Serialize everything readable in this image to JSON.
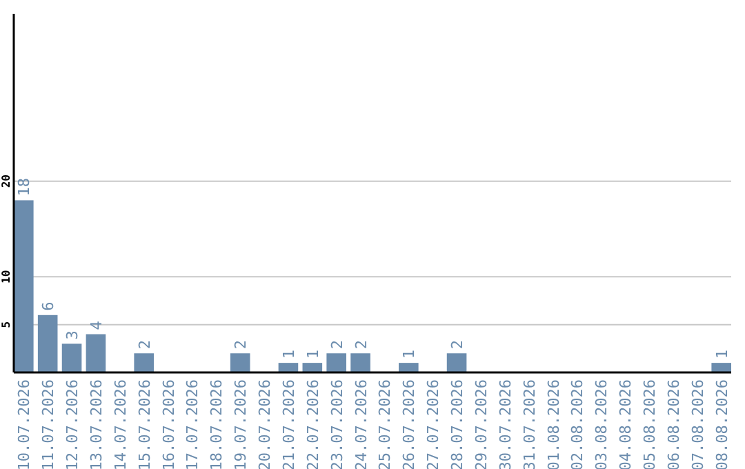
{
  "chart_data": {
    "type": "bar",
    "categories": [
      "10.07.2026",
      "11.07.2026",
      "12.07.2026",
      "13.07.2026",
      "14.07.2026",
      "15.07.2026",
      "16.07.2026",
      "17.07.2026",
      "18.07.2026",
      "19.07.2026",
      "20.07.2026",
      "21.07.2026",
      "22.07.2026",
      "23.07.2026",
      "24.07.2026",
      "25.07.2026",
      "26.07.2026",
      "27.07.2026",
      "28.07.2026",
      "29.07.2026",
      "30.07.2026",
      "31.07.2026",
      "01.08.2026",
      "02.08.2026",
      "03.08.2026",
      "04.08.2026",
      "05.08.2026",
      "06.08.2026",
      "07.08.2026",
      "08.08.2026"
    ],
    "values": [
      18,
      6,
      3,
      4,
      0,
      2,
      0,
      0,
      0,
      2,
      0,
      1,
      1,
      2,
      2,
      0,
      1,
      0,
      2,
      0,
      0,
      0,
      0,
      0,
      0,
      0,
      0,
      0,
      0,
      1
    ],
    "value_labels": [
      "18",
      "6",
      "3",
      "4",
      null,
      "2",
      null,
      null,
      null,
      "2",
      null,
      "1",
      "1",
      "2",
      "2",
      null,
      "1",
      null,
      "2",
      null,
      null,
      null,
      null,
      null,
      null,
      null,
      null,
      null,
      null,
      "1"
    ],
    "color": "#6b8cad",
    "ylim": [
      0,
      37.5
    ],
    "yticks": [
      5,
      10,
      20
    ],
    "grid": "y"
  }
}
